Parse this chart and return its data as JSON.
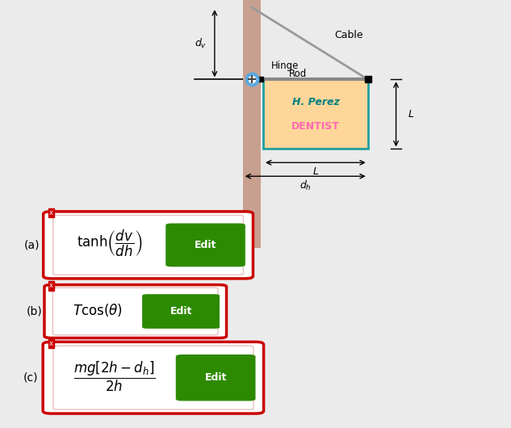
{
  "bg_color": "#ebebeb",
  "wall_color": "#c8a090",
  "sign_bg": "#ffd699",
  "sign_border": "#20a0a0",
  "hperez_color": "#008080",
  "dentist_color": "#ff69b4",
  "red_border": "#cc0000",
  "edit_btn_color": "#2d8a00",
  "edit_btn_text": "Edit",
  "formula_a": "$\\tanh\\!\\left(\\dfrac{dv}{dh}\\right)$",
  "formula_b": "$T\\cos(\\theta)$",
  "formula_c": "$\\dfrac{mg\\left[2h-d_h\\right]}{2h}$",
  "cable_label": "Cable",
  "hinge_label": "Hinge",
  "rod_label": "Rod",
  "dv_label": "$d_v$",
  "dh_label": "$d_h$",
  "L_label": "$L$"
}
